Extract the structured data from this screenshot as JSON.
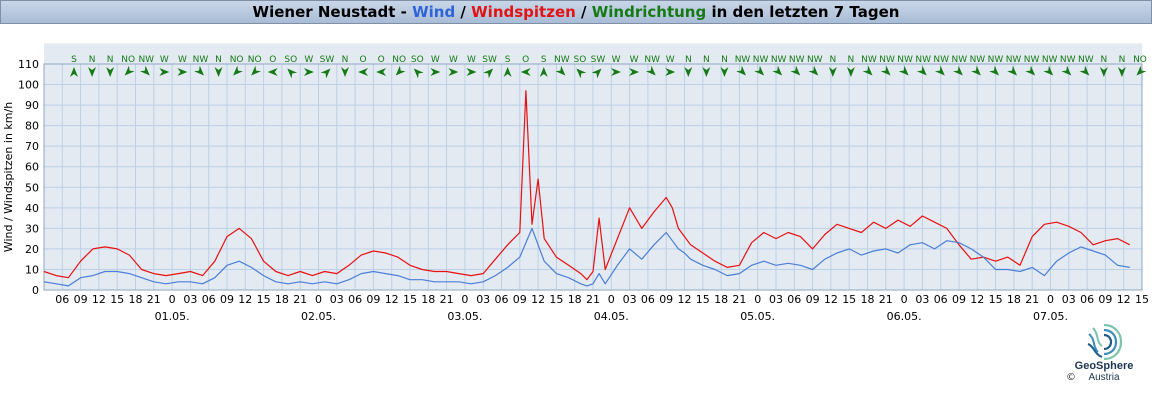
{
  "header": {
    "station": "Wiener Neustadt",
    "sep1": " - ",
    "wind": "Wind",
    "sep2": " / ",
    "gusts": "Windspitzen",
    "sep3": " / ",
    "direction": "Windrichtung",
    "suffix": " in den letzten 7 Tagen"
  },
  "colors": {
    "wind": "#4a7ed8",
    "gusts": "#e81010",
    "direction": "#157a15",
    "band": "#e4eaf2",
    "grid": "#bcd0e6"
  },
  "logo": {
    "name": "GeoSphere",
    "sub": "Austria",
    "copyright": "©"
  },
  "chart_data": {
    "type": "line",
    "title": "Wiener Neustadt - Wind / Windspitzen / Windrichtung in den letzten 7 Tagen",
    "ylabel": "Wind / Windspitzen in km/h",
    "xlabel": "",
    "ylim": [
      0,
      110
    ],
    "yticks": [
      0,
      10,
      20,
      30,
      40,
      50,
      60,
      70,
      80,
      90,
      100,
      110
    ],
    "x_unit": "hours",
    "x_range_hours": [
      3,
      183
    ],
    "x_tick_hours": [
      6,
      9,
      12,
      15,
      18,
      21,
      24,
      27,
      30,
      33,
      36,
      39,
      42,
      45,
      48,
      51,
      54,
      57,
      60,
      63,
      66,
      69,
      72,
      75,
      78,
      81,
      84,
      87,
      90,
      93,
      96,
      99,
      102,
      105,
      108,
      111,
      114,
      117,
      120,
      123,
      126,
      129,
      132,
      135,
      138,
      141,
      144,
      147,
      150,
      153,
      156,
      159,
      162,
      165,
      168,
      171,
      174,
      177,
      180,
      183
    ],
    "x_tick_labels": [
      "06",
      "09",
      "12",
      "15",
      "18",
      "21",
      "0",
      "03",
      "06",
      "09",
      "12",
      "15",
      "18",
      "21",
      "0",
      "03",
      "06",
      "09",
      "12",
      "15",
      "18",
      "21",
      "0",
      "03",
      "06",
      "09",
      "12",
      "15",
      "18",
      "21",
      "0",
      "03",
      "06",
      "09",
      "12",
      "15",
      "18",
      "21",
      "0",
      "03",
      "06",
      "09",
      "12",
      "15",
      "18",
      "21",
      "0",
      "03",
      "06",
      "09",
      "12",
      "15",
      "18",
      "21",
      "0",
      "03",
      "06",
      "09",
      "12",
      "15",
      "18",
      "21"
    ],
    "date_labels": [
      {
        "hour": 24,
        "label": "01.05."
      },
      {
        "hour": 48,
        "label": "02.05."
      },
      {
        "hour": 72,
        "label": "03.05."
      },
      {
        "hour": 96,
        "label": "04.05."
      },
      {
        "hour": 120,
        "label": "05.05."
      },
      {
        "hour": 144,
        "label": "06.05."
      },
      {
        "hour": 168,
        "label": "07.05."
      }
    ],
    "grid": true,
    "series": [
      {
        "name": "Wind",
        "x": [
          3,
          5,
          7,
          9,
          11,
          13,
          15,
          17,
          19,
          21,
          23,
          25,
          27,
          29,
          31,
          33,
          35,
          37,
          39,
          41,
          43,
          45,
          47,
          49,
          51,
          53,
          55,
          57,
          59,
          61,
          63,
          65,
          67,
          69,
          71,
          73,
          75,
          77,
          79,
          81,
          83,
          85,
          87,
          89,
          91,
          92,
          93,
          94,
          95,
          97,
          99,
          101,
          103,
          105,
          106,
          107,
          108,
          109,
          111,
          113,
          115,
          117,
          119,
          121,
          123,
          125,
          127,
          129,
          131,
          133,
          135,
          137,
          139,
          141,
          143,
          145,
          147,
          149,
          151,
          153,
          155,
          157,
          159,
          161,
          163,
          165,
          167,
          169,
          171,
          173,
          175,
          177,
          179,
          181
        ],
        "y": [
          4,
          3,
          2,
          6,
          7,
          9,
          9,
          8,
          6,
          4,
          3,
          4,
          4,
          3,
          6,
          12,
          14,
          11,
          7,
          4,
          3,
          4,
          3,
          4,
          3,
          5,
          8,
          9,
          8,
          7,
          5,
          5,
          4,
          4,
          4,
          3,
          4,
          7,
          11,
          16,
          30,
          14,
          8,
          6,
          3,
          2,
          3,
          8,
          3,
          12,
          20,
          15,
          22,
          28,
          24,
          20,
          18,
          15,
          12,
          10,
          7,
          8,
          12,
          14,
          12,
          13,
          12,
          10,
          15,
          18,
          20,
          17,
          19,
          20,
          18,
          22,
          23,
          20,
          24,
          23,
          20,
          16,
          10,
          10,
          9,
          11,
          7,
          14,
          18,
          21,
          19,
          17,
          12,
          11
        ]
      },
      {
        "name": "Windspitzen",
        "x": [
          3,
          5,
          7,
          9,
          11,
          13,
          15,
          17,
          19,
          21,
          23,
          25,
          27,
          29,
          31,
          33,
          35,
          37,
          39,
          41,
          43,
          45,
          47,
          49,
          51,
          53,
          55,
          57,
          59,
          61,
          63,
          65,
          67,
          69,
          71,
          73,
          75,
          77,
          79,
          81,
          82,
          83,
          84,
          85,
          87,
          89,
          91,
          92,
          93,
          94,
          95,
          97,
          99,
          101,
          103,
          105,
          106,
          107,
          108,
          109,
          111,
          113,
          115,
          117,
          119,
          121,
          123,
          125,
          127,
          129,
          131,
          133,
          135,
          137,
          139,
          141,
          143,
          145,
          147,
          149,
          151,
          153,
          155,
          157,
          159,
          161,
          163,
          165,
          167,
          169,
          171,
          173,
          175,
          177,
          179,
          181
        ],
        "y": [
          9,
          7,
          6,
          14,
          20,
          21,
          20,
          17,
          10,
          8,
          7,
          8,
          9,
          7,
          14,
          26,
          30,
          25,
          14,
          9,
          7,
          9,
          7,
          9,
          8,
          12,
          17,
          19,
          18,
          16,
          12,
          10,
          9,
          9,
          8,
          7,
          8,
          15,
          22,
          28,
          97,
          32,
          54,
          25,
          16,
          12,
          8,
          5,
          9,
          35,
          10,
          25,
          40,
          30,
          38,
          45,
          40,
          30,
          26,
          22,
          18,
          14,
          11,
          12,
          23,
          28,
          25,
          28,
          26,
          20,
          27,
          32,
          30,
          28,
          33,
          30,
          34,
          31,
          36,
          33,
          30,
          22,
          15,
          16,
          14,
          16,
          12,
          26,
          32,
          33,
          31,
          28,
          22,
          24,
          25,
          22
        ]
      }
    ],
    "direction_labels": [
      "S",
      "N",
      "N",
      "NO",
      "NW",
      "W",
      "W",
      "NW",
      "N",
      "NO",
      "NO",
      "O",
      "SO",
      "W",
      "SW",
      "N",
      "O",
      "O",
      "NO",
      "SO",
      "W",
      "W",
      "W",
      "SW",
      "S",
      "O",
      "S",
      "NW",
      "SO",
      "SW",
      "W",
      "W",
      "NW",
      "W",
      "N",
      "N",
      "N",
      "NW",
      "NW",
      "NW",
      "NW",
      "NW",
      "N",
      "N",
      "NW",
      "NW",
      "NW",
      "NW",
      "NW",
      "NW",
      "NW",
      "NW",
      "NW",
      "NW",
      "NW",
      "NW",
      "NW",
      "N",
      "N",
      "NO"
    ]
  }
}
